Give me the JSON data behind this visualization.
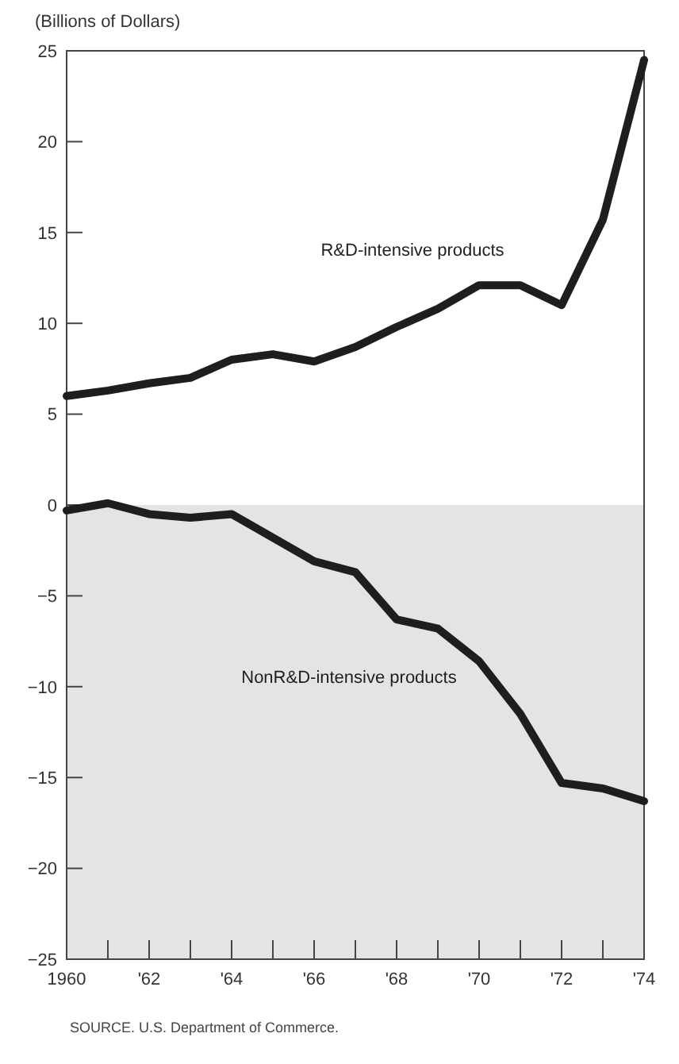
{
  "chart_data": {
    "type": "line",
    "ylabel": "(Billions of Dollars)",
    "x": [
      1960,
      1961,
      1962,
      1963,
      1964,
      1965,
      1966,
      1967,
      1968,
      1969,
      1970,
      1971,
      1972,
      1973,
      1974
    ],
    "series": [
      {
        "name": "R&D-intensive products",
        "color": "#1e1e1e",
        "values": [
          6.0,
          6.3,
          6.7,
          7.0,
          8.0,
          8.3,
          7.9,
          8.7,
          9.8,
          10.8,
          12.1,
          12.1,
          11.0,
          15.7,
          24.5
        ]
      },
      {
        "name": "NonR&D-intensive products",
        "color": "#1e1e1e",
        "values": [
          -0.3,
          0.1,
          -0.5,
          -0.7,
          -0.5,
          -1.8,
          -3.1,
          -3.7,
          -6.3,
          -6.8,
          -8.6,
          -11.5,
          -15.3,
          -15.6,
          -16.3
        ]
      }
    ],
    "xlim": [
      1960,
      1974
    ],
    "xticks": [
      1960,
      {
        "value": 1961,
        "label": null
      },
      {
        "value": 1962,
        "label": "'62"
      },
      {
        "value": 1963,
        "label": null
      },
      {
        "value": 1964,
        "label": "'64"
      },
      {
        "value": 1965,
        "label": null
      },
      {
        "value": 1966,
        "label": "'66"
      },
      {
        "value": 1967,
        "label": null
      },
      {
        "value": 1968,
        "label": "'68"
      },
      {
        "value": 1969,
        "label": null
      },
      {
        "value": 1970,
        "label": "'70"
      },
      {
        "value": 1971,
        "label": null
      },
      {
        "value": 1972,
        "label": "'72"
      },
      {
        "value": 1973,
        "label": null
      },
      {
        "value": 1974,
        "label": "'74"
      }
    ],
    "ylim": [
      -25,
      25
    ],
    "yticks": [
      {
        "value": -25,
        "label": "−25"
      },
      {
        "value": -20,
        "label": "−20"
      },
      {
        "value": -15,
        "label": "−15"
      },
      {
        "value": -10,
        "label": "−10"
      },
      {
        "value": -5,
        "label": "−5"
      },
      0,
      5,
      10,
      15,
      20,
      25
    ],
    "bands": [
      {
        "axis": "y",
        "from": -25,
        "to": 0,
        "color": "#e4e4e4"
      }
    ],
    "grid": false,
    "line_style": "solid",
    "marker": "none",
    "annotations": [
      "SOURCE. U.S. Department of Commerce."
    ]
  }
}
